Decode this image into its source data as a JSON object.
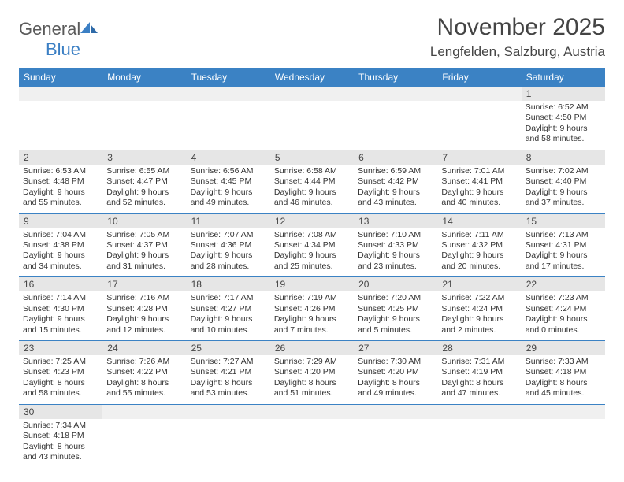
{
  "logo": {
    "text1": "General",
    "text2": "Blue"
  },
  "title": "November 2025",
  "location": "Lengfelden, Salzburg, Austria",
  "colors": {
    "header_bg": "#3b82c4",
    "header_text": "#ffffff",
    "daynum_bg": "#e6e6e6",
    "divider": "#3b82c4",
    "logo_gray": "#5a5a5a",
    "logo_blue": "#3b7fc4"
  },
  "day_headers": [
    "Sunday",
    "Monday",
    "Tuesday",
    "Wednesday",
    "Thursday",
    "Friday",
    "Saturday"
  ],
  "weeks": [
    {
      "nums": [
        "",
        "",
        "",
        "",
        "",
        "",
        "1"
      ],
      "info": [
        "",
        "",
        "",
        "",
        "",
        "",
        "Sunrise: 6:52 AM\nSunset: 4:50 PM\nDaylight: 9 hours and 58 minutes."
      ]
    },
    {
      "nums": [
        "2",
        "3",
        "4",
        "5",
        "6",
        "7",
        "8"
      ],
      "info": [
        "Sunrise: 6:53 AM\nSunset: 4:48 PM\nDaylight: 9 hours and 55 minutes.",
        "Sunrise: 6:55 AM\nSunset: 4:47 PM\nDaylight: 9 hours and 52 minutes.",
        "Sunrise: 6:56 AM\nSunset: 4:45 PM\nDaylight: 9 hours and 49 minutes.",
        "Sunrise: 6:58 AM\nSunset: 4:44 PM\nDaylight: 9 hours and 46 minutes.",
        "Sunrise: 6:59 AM\nSunset: 4:42 PM\nDaylight: 9 hours and 43 minutes.",
        "Sunrise: 7:01 AM\nSunset: 4:41 PM\nDaylight: 9 hours and 40 minutes.",
        "Sunrise: 7:02 AM\nSunset: 4:40 PM\nDaylight: 9 hours and 37 minutes."
      ]
    },
    {
      "nums": [
        "9",
        "10",
        "11",
        "12",
        "13",
        "14",
        "15"
      ],
      "info": [
        "Sunrise: 7:04 AM\nSunset: 4:38 PM\nDaylight: 9 hours and 34 minutes.",
        "Sunrise: 7:05 AM\nSunset: 4:37 PM\nDaylight: 9 hours and 31 minutes.",
        "Sunrise: 7:07 AM\nSunset: 4:36 PM\nDaylight: 9 hours and 28 minutes.",
        "Sunrise: 7:08 AM\nSunset: 4:34 PM\nDaylight: 9 hours and 25 minutes.",
        "Sunrise: 7:10 AM\nSunset: 4:33 PM\nDaylight: 9 hours and 23 minutes.",
        "Sunrise: 7:11 AM\nSunset: 4:32 PM\nDaylight: 9 hours and 20 minutes.",
        "Sunrise: 7:13 AM\nSunset: 4:31 PM\nDaylight: 9 hours and 17 minutes."
      ]
    },
    {
      "nums": [
        "16",
        "17",
        "18",
        "19",
        "20",
        "21",
        "22"
      ],
      "info": [
        "Sunrise: 7:14 AM\nSunset: 4:30 PM\nDaylight: 9 hours and 15 minutes.",
        "Sunrise: 7:16 AM\nSunset: 4:28 PM\nDaylight: 9 hours and 12 minutes.",
        "Sunrise: 7:17 AM\nSunset: 4:27 PM\nDaylight: 9 hours and 10 minutes.",
        "Sunrise: 7:19 AM\nSunset: 4:26 PM\nDaylight: 9 hours and 7 minutes.",
        "Sunrise: 7:20 AM\nSunset: 4:25 PM\nDaylight: 9 hours and 5 minutes.",
        "Sunrise: 7:22 AM\nSunset: 4:24 PM\nDaylight: 9 hours and 2 minutes.",
        "Sunrise: 7:23 AM\nSunset: 4:24 PM\nDaylight: 9 hours and 0 minutes."
      ]
    },
    {
      "nums": [
        "23",
        "24",
        "25",
        "26",
        "27",
        "28",
        "29"
      ],
      "info": [
        "Sunrise: 7:25 AM\nSunset: 4:23 PM\nDaylight: 8 hours and 58 minutes.",
        "Sunrise: 7:26 AM\nSunset: 4:22 PM\nDaylight: 8 hours and 55 minutes.",
        "Sunrise: 7:27 AM\nSunset: 4:21 PM\nDaylight: 8 hours and 53 minutes.",
        "Sunrise: 7:29 AM\nSunset: 4:20 PM\nDaylight: 8 hours and 51 minutes.",
        "Sunrise: 7:30 AM\nSunset: 4:20 PM\nDaylight: 8 hours and 49 minutes.",
        "Sunrise: 7:31 AM\nSunset: 4:19 PM\nDaylight: 8 hours and 47 minutes.",
        "Sunrise: 7:33 AM\nSunset: 4:18 PM\nDaylight: 8 hours and 45 minutes."
      ]
    },
    {
      "nums": [
        "30",
        "",
        "",
        "",
        "",
        "",
        ""
      ],
      "info": [
        "Sunrise: 7:34 AM\nSunset: 4:18 PM\nDaylight: 8 hours and 43 minutes.",
        "",
        "",
        "",
        "",
        "",
        ""
      ]
    }
  ]
}
